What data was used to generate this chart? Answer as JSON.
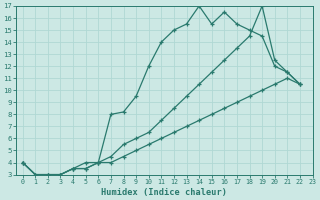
{
  "xlabel": "Humidex (Indice chaleur)",
  "xlim": [
    -0.5,
    23
  ],
  "ylim": [
    3,
    17
  ],
  "xticks": [
    0,
    1,
    2,
    3,
    4,
    5,
    6,
    7,
    8,
    9,
    10,
    11,
    12,
    13,
    14,
    15,
    16,
    17,
    18,
    19,
    20,
    21,
    22,
    23
  ],
  "yticks": [
    3,
    4,
    5,
    6,
    7,
    8,
    9,
    10,
    11,
    12,
    13,
    14,
    15,
    16,
    17
  ],
  "bg_color": "#cce8e4",
  "line_color": "#2a7a6e",
  "grid_color": "#b0d8d4",
  "line1_x": [
    0,
    1,
    2,
    3,
    4,
    5,
    6,
    7,
    8,
    9,
    10,
    11,
    12,
    13,
    14,
    15,
    16,
    17,
    18,
    19,
    20,
    21,
    22
  ],
  "line1_y": [
    4.0,
    3.0,
    3.0,
    3.0,
    3.5,
    4.0,
    4.0,
    8.0,
    8.2,
    9.5,
    12.0,
    14.0,
    15.0,
    15.5,
    17.0,
    15.5,
    16.5,
    15.5,
    15.0,
    14.5,
    12.0,
    11.5,
    10.5
  ],
  "line2_x": [
    0,
    1,
    2,
    3,
    4,
    5,
    6,
    7,
    8,
    9,
    10,
    11,
    12,
    13,
    14,
    15,
    16,
    17,
    18,
    19,
    20,
    21,
    22
  ],
  "line2_y": [
    4.0,
    3.0,
    3.0,
    3.0,
    3.5,
    3.5,
    4.0,
    4.5,
    5.5,
    6.0,
    6.5,
    7.5,
    8.5,
    9.5,
    10.5,
    11.5,
    12.5,
    13.5,
    14.5,
    17.0,
    12.5,
    11.5,
    10.5
  ],
  "line3_x": [
    0,
    1,
    2,
    3,
    4,
    5,
    6,
    7,
    8,
    9,
    10,
    11,
    12,
    13,
    14,
    15,
    16,
    17,
    18,
    19,
    20,
    21,
    22
  ],
  "line3_y": [
    4.0,
    3.0,
    3.0,
    3.0,
    3.5,
    3.5,
    4.0,
    4.0,
    4.5,
    5.0,
    5.5,
    6.0,
    6.5,
    7.0,
    7.5,
    8.0,
    8.5,
    9.0,
    9.5,
    10.0,
    10.5,
    11.0,
    10.5
  ]
}
